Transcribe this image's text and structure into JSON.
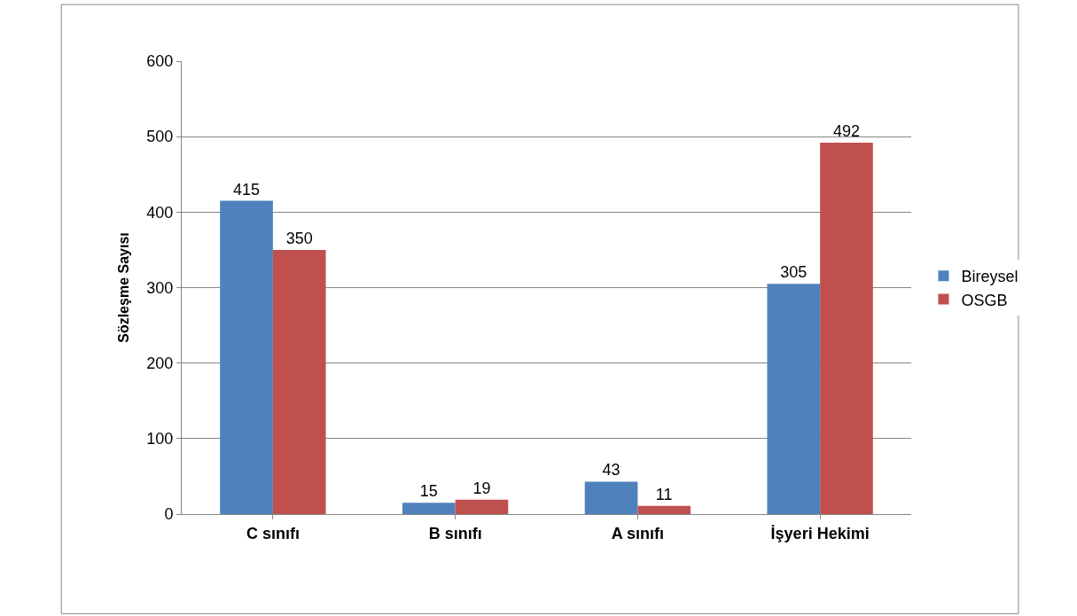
{
  "chart_data": {
    "type": "bar",
    "ylabel": "Sözleşme Sayısı",
    "categories": [
      "C sınıfı",
      "B sınıfı",
      "A sınıfı",
      "İşyeri Hekimi"
    ],
    "series": [
      {
        "name": "Bireysel",
        "color": "#4f81bd",
        "values": [
          415,
          15,
          43,
          305
        ]
      },
      {
        "name": "OSGB",
        "color": "#c0504d",
        "values": [
          350,
          19,
          11,
          492
        ]
      }
    ],
    "ylim": [
      0,
      600
    ],
    "yticks": [
      0,
      100,
      200,
      300,
      400,
      500,
      600
    ],
    "grid": "y",
    "legend": "right",
    "data_labels": true
  }
}
